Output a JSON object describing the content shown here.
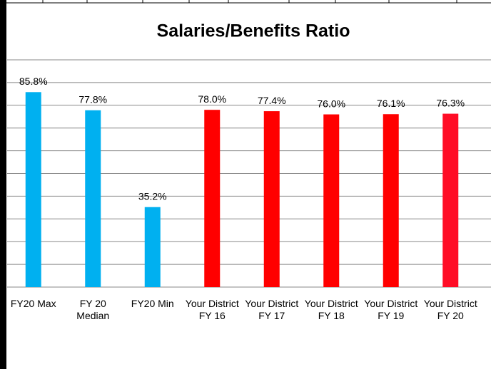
{
  "chart_data": {
    "type": "bar",
    "title": "Salaries/Benefits Ratio",
    "categories": [
      "FY20 Max",
      "FY 20 Median",
      "FY20 Min",
      "Your District FY 16",
      "Your District FY 17",
      "Your District FY 18",
      "Your District FY 19",
      "Your District FY 20"
    ],
    "values": [
      85.8,
      77.8,
      35.2,
      78.0,
      77.4,
      76.0,
      76.1,
      76.3
    ],
    "value_labels": [
      "85.8%",
      "77.8%",
      "35.2%",
      "78.0%",
      "77.4%",
      "76.0%",
      "76.1%",
      "76.3%"
    ],
    "colors": [
      "#00b0f0",
      "#00b0f0",
      "#00b0f0",
      "#ff0000",
      "#ff0000",
      "#ff0000",
      "#ff0000",
      "#ff0d26"
    ],
    "ylim": [
      0,
      100
    ],
    "yticks": [
      0,
      10,
      20,
      30,
      40,
      50,
      60,
      70,
      80,
      90,
      100
    ],
    "grid": true
  }
}
